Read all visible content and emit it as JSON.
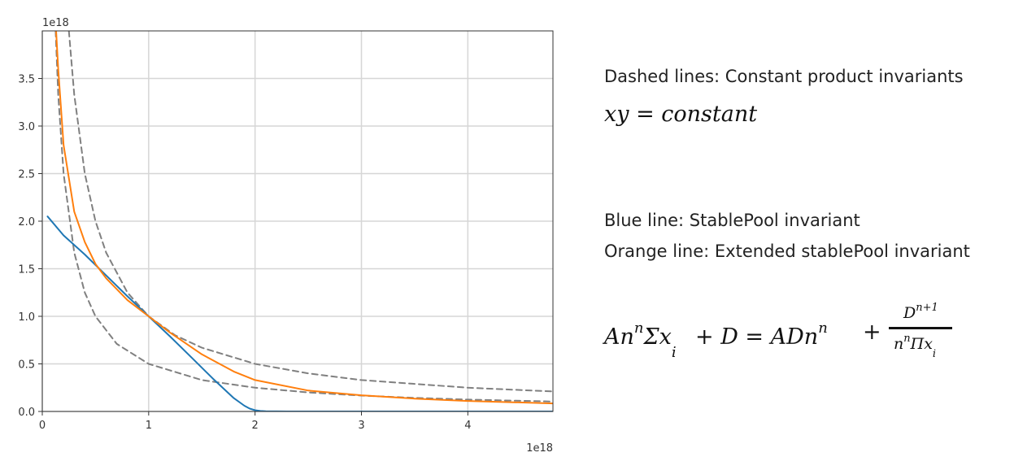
{
  "chart_data": {
    "type": "line",
    "xlim": [
      0,
      4.8
    ],
    "ylim": [
      0,
      4.0
    ],
    "x_ticks": [
      0,
      1,
      2,
      3,
      4
    ],
    "y_ticks": [
      0.0,
      0.5,
      1.0,
      1.5,
      2.0,
      2.5,
      3.0,
      3.5
    ],
    "x_tick_labels": [
      "0",
      "1",
      "2",
      "3",
      "4"
    ],
    "y_tick_labels": [
      "0.0",
      "0.5",
      "1.0",
      "1.5",
      "2.0",
      "2.5",
      "3.0",
      "3.5"
    ],
    "x_offset_label": "1e18",
    "y_offset_label": "1e18",
    "grid": true,
    "colors": {
      "stable": "#1f77b4",
      "extended": "#ff7f0e",
      "constant_product": "#808080"
    },
    "series": [
      {
        "x": [
          0.05,
          0.2,
          0.4,
          0.6,
          0.8,
          1.0,
          1.2,
          1.4,
          1.6,
          1.8,
          1.9,
          1.95,
          2.0,
          2.05,
          2.1,
          2.3,
          3.0,
          4.0,
          4.8
        ],
        "y": [
          2.05,
          1.85,
          1.65,
          1.43,
          1.21,
          1.0,
          0.79,
          0.57,
          0.35,
          0.14,
          0.06,
          0.03,
          0.013,
          0.005,
          0.002,
          0.0,
          0.0,
          0.0,
          0.0
        ]
      },
      {
        "x": [
          0.13,
          0.15,
          0.2,
          0.3,
          0.4,
          0.5,
          0.6,
          0.8,
          1.0,
          1.2,
          1.5,
          1.8,
          2.0,
          2.5,
          3.0,
          3.5,
          4.0,
          4.8
        ],
        "y": [
          4.0,
          3.6,
          2.8,
          2.1,
          1.78,
          1.55,
          1.4,
          1.17,
          1.0,
          0.83,
          0.6,
          0.42,
          0.33,
          0.22,
          0.17,
          0.135,
          0.11,
          0.085
        ]
      },
      {
        "x": [
          0.25,
          0.3,
          0.4,
          0.5,
          0.6,
          0.8,
          1.0,
          1.25,
          1.5,
          2.0,
          2.5,
          3.0,
          3.5,
          4.0,
          4.8
        ],
        "y": [
          4.0,
          3.33,
          2.5,
          2.0,
          1.67,
          1.25,
          1.0,
          0.8,
          0.67,
          0.5,
          0.4,
          0.33,
          0.29,
          0.25,
          0.21
        ]
      },
      {
        "x": [
          0.125,
          0.15,
          0.2,
          0.3,
          0.4,
          0.5,
          0.7,
          1.0,
          1.5,
          2.0,
          2.5,
          3.0,
          3.5,
          4.0,
          4.8
        ],
        "y": [
          4.0,
          3.33,
          2.5,
          1.67,
          1.25,
          1.0,
          0.71,
          0.5,
          0.33,
          0.25,
          0.2,
          0.167,
          0.143,
          0.125,
          0.104
        ]
      }
    ]
  },
  "legend": {
    "dashed": "Dashed lines: Constant product invariants",
    "blue": "Blue line: StablePool invariant",
    "orange": "Orange line: Extended stablePool invariant"
  },
  "formulas": {
    "constant_product": "xy  =  constant",
    "stable_lhs_a": "An",
    "stable_lhs_exp": "n",
    "stable_lhs_b": "Σx",
    "stable_lhs_sub": "i",
    "stable_mid": "+  D  =  ADn",
    "stable_mid_exp": "n",
    "stable_plus": "+",
    "frac_num": "D",
    "frac_num_exp": "n+1",
    "frac_den_a": "n",
    "frac_den_exp": "n",
    "frac_den_b": "Πx",
    "frac_den_sub": "i"
  }
}
